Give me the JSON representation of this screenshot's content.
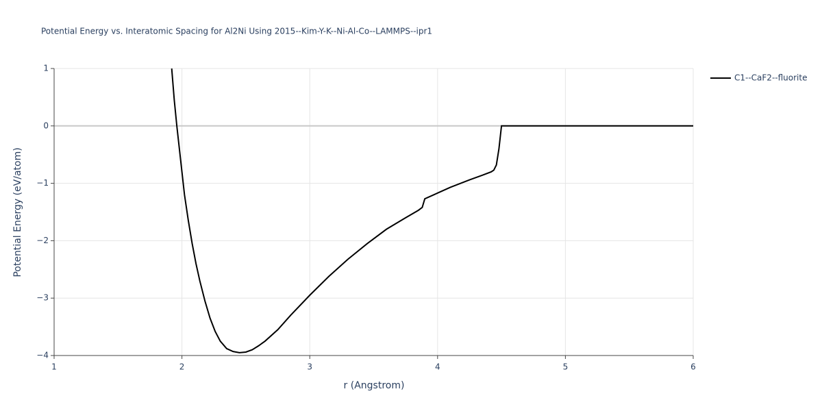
{
  "chart_data": {
    "type": "line",
    "title": "Potential Energy vs. Interatomic Spacing for Al2Ni Using 2015--Kim-Y-K--Ni-Al-Co--LAMMPS--ipr1",
    "x_label": "r (Angstrom)",
    "y_label": "Potential Energy (eV/atom)",
    "x": [
      1.92,
      1.94,
      1.96,
      1.98,
      2.0,
      2.02,
      2.05,
      2.08,
      2.11,
      2.14,
      2.18,
      2.22,
      2.26,
      2.3,
      2.35,
      2.4,
      2.45,
      2.5,
      2.55,
      2.6,
      2.65,
      2.75,
      2.85,
      3.0,
      3.15,
      3.3,
      3.45,
      3.6,
      3.75,
      3.85,
      3.88,
      3.9,
      4.0,
      4.1,
      4.25,
      4.35,
      4.42,
      4.44,
      4.46,
      4.48,
      4.5,
      5.0,
      6.0
    ],
    "series": [
      {
        "name": "C1--CaF2--fluorite",
        "color": "#000000",
        "values": [
          1.0,
          0.45,
          0.0,
          -0.4,
          -0.8,
          -1.2,
          -1.65,
          -2.05,
          -2.4,
          -2.7,
          -3.05,
          -3.35,
          -3.58,
          -3.75,
          -3.88,
          -3.93,
          -3.95,
          -3.94,
          -3.9,
          -3.83,
          -3.75,
          -3.55,
          -3.3,
          -2.95,
          -2.62,
          -2.32,
          -2.05,
          -1.8,
          -1.6,
          -1.47,
          -1.42,
          -1.27,
          -1.17,
          -1.07,
          -0.94,
          -0.86,
          -0.8,
          -0.77,
          -0.68,
          -0.4,
          0.0,
          0.0,
          0.0
        ]
      }
    ],
    "xlim": [
      1,
      6
    ],
    "xticks": [
      1,
      2,
      3,
      4,
      5,
      6
    ],
    "ylim": [
      -4,
      1
    ],
    "yticks": [
      {
        "value": -4,
        "label": "−4"
      },
      {
        "value": -3,
        "label": "−3"
      },
      {
        "value": -2,
        "label": "−2"
      },
      {
        "value": -1,
        "label": "−1"
      },
      0,
      1
    ],
    "grid": true,
    "legend": "top-right"
  }
}
